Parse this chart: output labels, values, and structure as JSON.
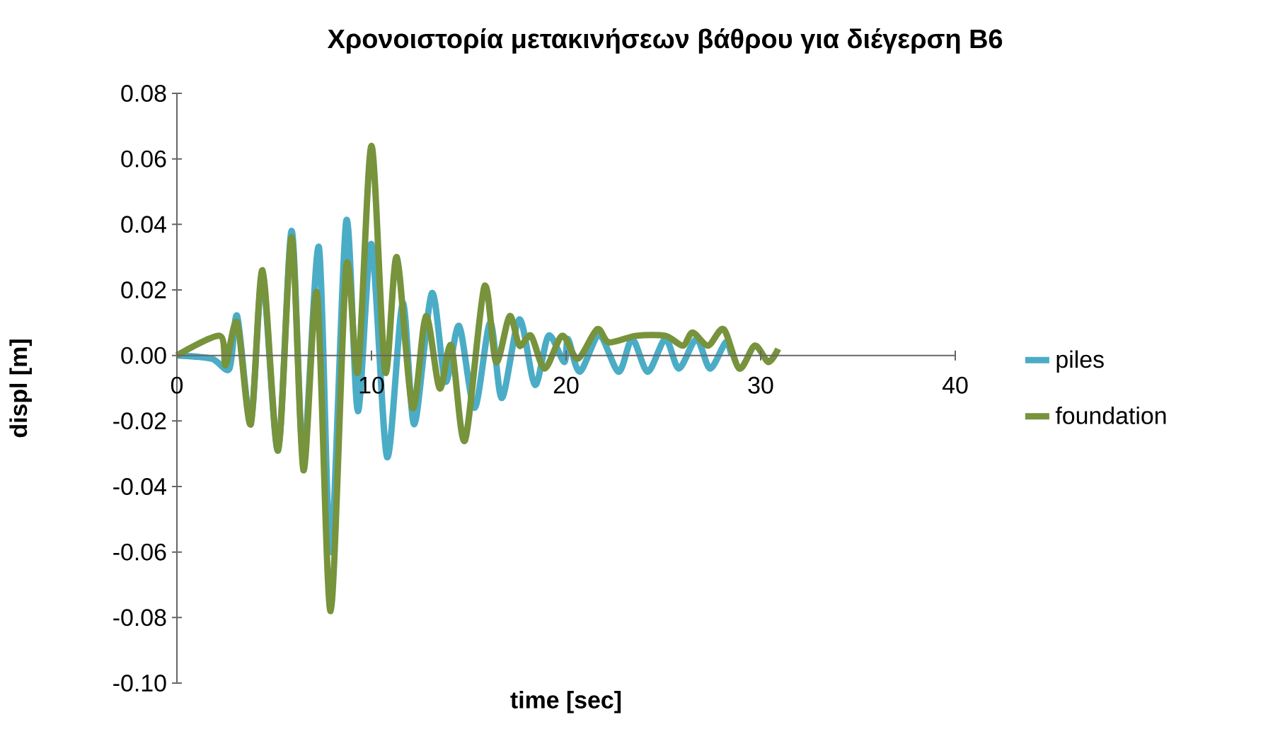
{
  "chart_data": {
    "type": "line",
    "title": "Χρονοιστορία μετακινήσεων βάθρου για διέγερση Β6",
    "xlabel": "time [sec]",
    "ylabel": "displ [m]",
    "xlim": [
      0,
      40
    ],
    "xticks": [
      0,
      10,
      20,
      30,
      40
    ],
    "ylim": [
      -0.1,
      0.08
    ],
    "yticks": [
      {
        "value": -0.1,
        "label": "-0.10"
      },
      {
        "value": -0.08,
        "label": "-0.08"
      },
      {
        "value": -0.06,
        "label": "-0.06"
      },
      {
        "value": -0.04,
        "label": "-0.04"
      },
      {
        "value": -0.02,
        "label": "-0.02"
      },
      {
        "value": 0,
        "label": "0.00"
      },
      {
        "value": 0.02,
        "label": "0.02"
      },
      {
        "value": 0.04,
        "label": "0.04"
      },
      {
        "value": 0.06,
        "label": "0.06"
      },
      {
        "value": 0.08,
        "label": "0.08"
      }
    ],
    "legend": "right",
    "grid": false,
    "marker": "none",
    "line_style": "solid",
    "series": [
      {
        "name": "piles",
        "color": "#4bacc6",
        "x": [
          0,
          1.8,
          2.7,
          3.1,
          3.8,
          4.4,
          5.2,
          5.9,
          6.5,
          7.3,
          7.9,
          8.7,
          9.3,
          10.0,
          10.8,
          11.6,
          12.2,
          13.1,
          13.8,
          14.5,
          15.3,
          16.1,
          16.7,
          17.6,
          18.4,
          19.1,
          19.9,
          20.1,
          20.7,
          21.7,
          22.7,
          23.4,
          24.2,
          25.1,
          25.8,
          26.7,
          27.4,
          28.2,
          28.5
        ],
        "values": [
          0,
          -0.001,
          -0.004,
          0.012,
          -0.02,
          0.024,
          -0.029,
          0.038,
          -0.031,
          0.033,
          -0.06,
          0.041,
          -0.017,
          0.034,
          -0.031,
          0.016,
          -0.021,
          0.019,
          -0.008,
          0.009,
          -0.016,
          0.01,
          -0.013,
          0.011,
          -0.009,
          0.006,
          -0.002,
          0.005,
          -0.005,
          0.006,
          -0.005,
          0.005,
          -0.005,
          0.005,
          -0.004,
          0.005,
          -0.004,
          0.004,
          0.0
        ]
      },
      {
        "name": "foundation",
        "color": "#77933c",
        "x": [
          0,
          2.2,
          2.5,
          3.1,
          3.8,
          4.4,
          5.2,
          5.9,
          6.5,
          7.2,
          7.9,
          8.7,
          9.3,
          10.0,
          10.7,
          11.3,
          12.1,
          12.8,
          13.5,
          14.1,
          14.8,
          15.8,
          16.4,
          17.1,
          17.6,
          18.2,
          18.9,
          19.8,
          20.6,
          21.6,
          22.2,
          23.6,
          25.1,
          26.0,
          26.5,
          27.3,
          28.1,
          28.9,
          29.7,
          30.4,
          30.9
        ],
        "values": [
          0,
          0.006,
          -0.003,
          0.01,
          -0.021,
          0.026,
          -0.029,
          0.036,
          -0.035,
          0.019,
          -0.078,
          0.027,
          -0.005,
          0.064,
          -0.005,
          0.03,
          -0.016,
          0.012,
          -0.01,
          0.003,
          -0.026,
          0.021,
          -0.002,
          0.012,
          0.003,
          0.006,
          -0.004,
          0.006,
          -0.001,
          0.008,
          0.004,
          0.006,
          0.006,
          0.003,
          0.007,
          0.003,
          0.008,
          -0.004,
          0.003,
          -0.002,
          0.002
        ]
      }
    ]
  }
}
